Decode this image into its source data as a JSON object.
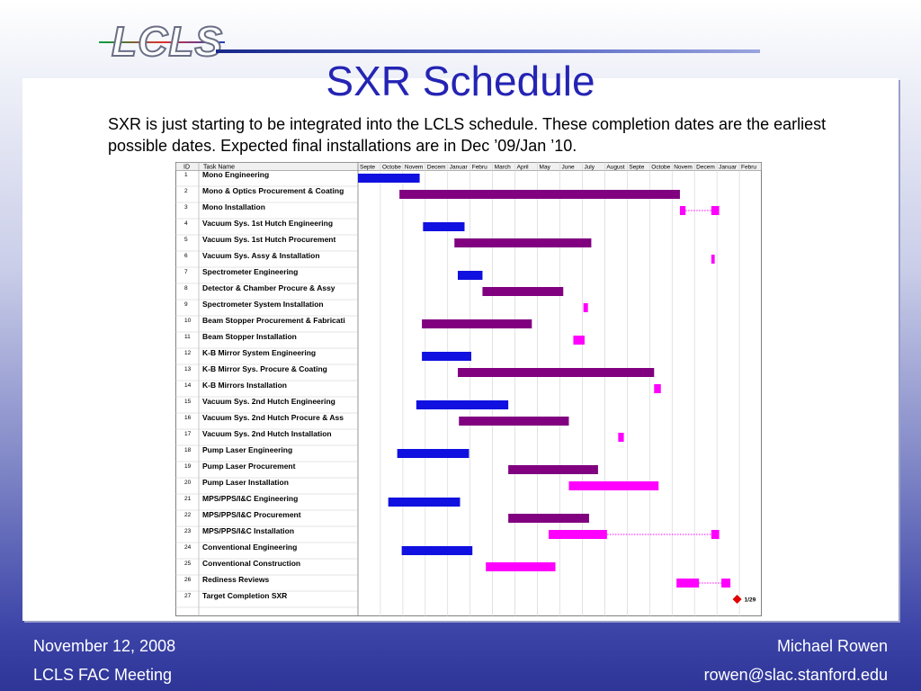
{
  "logo": {
    "text": "LCLS"
  },
  "title": "SXR Schedule",
  "intro": "SXR is just starting to be integrated into the LCLS schedule. These completion dates are the earliest possible dates. Expected final installations are in Dec ’09/Jan ’10.",
  "footer": {
    "date": "November 12, 2008",
    "meeting": "LCLS FAC Meeting",
    "author": "Michael Rowen",
    "email": "rowen@slac.stanford.edu"
  },
  "colors": {
    "engineering": "#1010e0",
    "procurement": "#800080",
    "installation": "#ff00ff",
    "milestone": "#e00000",
    "title": "#2424b4"
  },
  "chart_data": {
    "type": "gantt",
    "headers": {
      "id": "ID",
      "task": "Task Name"
    },
    "months": [
      "Septe",
      "Octobe",
      "Novem",
      "Decem",
      "Januar",
      "Febru",
      "March",
      "April",
      "May",
      "June",
      "July",
      "August",
      "Septe",
      "Octobe",
      "Novem",
      "Decem",
      "Januar",
      "Febru"
    ],
    "x_range_months": [
      0,
      18
    ],
    "tasks": [
      {
        "id": "1",
        "name": "Mono Engineering",
        "segments": [
          {
            "start": 0.0,
            "end": 2.75,
            "kind": "engineering"
          }
        ]
      },
      {
        "id": "2",
        "name": "Mono & Optics Procurement & Coating",
        "segments": [
          {
            "start": 1.85,
            "end": 14.35,
            "kind": "procurement"
          }
        ]
      },
      {
        "id": "3",
        "name": "Mono  Installation",
        "segments": [
          {
            "start": 14.35,
            "end": 14.6,
            "kind": "installation"
          },
          {
            "start": 15.75,
            "end": 16.1,
            "kind": "installation"
          }
        ],
        "split": true
      },
      {
        "id": "4",
        "name": "Vacuum Sys. 1st Hutch Engineering",
        "segments": [
          {
            "start": 2.9,
            "end": 4.75,
            "kind": "engineering"
          }
        ]
      },
      {
        "id": "5",
        "name": "Vacuum Sys. 1st Hutch  Procurement",
        "segments": [
          {
            "start": 4.3,
            "end": 10.4,
            "kind": "procurement"
          }
        ]
      },
      {
        "id": "6",
        "name": "Vacuum Sys. Assy & Installation",
        "segments": [
          {
            "start": 15.75,
            "end": 15.9,
            "kind": "installation"
          }
        ]
      },
      {
        "id": "7",
        "name": "Spectrometer Engineering",
        "segments": [
          {
            "start": 4.45,
            "end": 5.55,
            "kind": "engineering"
          }
        ]
      },
      {
        "id": "8",
        "name": "Detector & Chamber Procure & Assy",
        "segments": [
          {
            "start": 5.55,
            "end": 9.15,
            "kind": "procurement"
          }
        ]
      },
      {
        "id": "9",
        "name": "Spectrometer System Installation",
        "segments": [
          {
            "start": 10.05,
            "end": 10.25,
            "kind": "installation"
          }
        ]
      },
      {
        "id": "10",
        "name": "Beam Stopper Procurement & Fabricati",
        "segments": [
          {
            "start": 2.85,
            "end": 7.75,
            "kind": "procurement"
          }
        ]
      },
      {
        "id": "11",
        "name": "Beam Stopper Installation",
        "segments": [
          {
            "start": 9.6,
            "end": 10.1,
            "kind": "installation"
          }
        ]
      },
      {
        "id": "12",
        "name": "K-B Mirror System Engineering",
        "segments": [
          {
            "start": 2.85,
            "end": 5.05,
            "kind": "engineering"
          }
        ]
      },
      {
        "id": "13",
        "name": "K-B Mirror Sys. Procure & Coating",
        "segments": [
          {
            "start": 4.45,
            "end": 13.2,
            "kind": "procurement"
          }
        ]
      },
      {
        "id": "14",
        "name": "K-B Mirrors Installation",
        "segments": [
          {
            "start": 13.2,
            "end": 13.5,
            "kind": "installation"
          }
        ]
      },
      {
        "id": "15",
        "name": "Vacuum Sys. 2nd Hutch Engineering",
        "segments": [
          {
            "start": 2.6,
            "end": 6.7,
            "kind": "engineering"
          }
        ]
      },
      {
        "id": "16",
        "name": "Vacuum Sys. 2nd Hutch  Procure & Ass",
        "segments": [
          {
            "start": 4.5,
            "end": 9.4,
            "kind": "procurement"
          }
        ]
      },
      {
        "id": "17",
        "name": "Vacuum Sys. 2nd Hutch Installation",
        "segments": [
          {
            "start": 11.6,
            "end": 11.85,
            "kind": "installation"
          }
        ]
      },
      {
        "id": "18",
        "name": "Pump Laser Engineering",
        "segments": [
          {
            "start": 1.75,
            "end": 4.95,
            "kind": "engineering"
          }
        ]
      },
      {
        "id": "19",
        "name": "Pump Laser Procurement",
        "segments": [
          {
            "start": 6.7,
            "end": 10.7,
            "kind": "procurement"
          }
        ]
      },
      {
        "id": "20",
        "name": "Pump Laser Installation",
        "segments": [
          {
            "start": 9.4,
            "end": 13.4,
            "kind": "installation"
          }
        ]
      },
      {
        "id": "21",
        "name": "MPS/PPS/I&C Engineering",
        "segments": [
          {
            "start": 1.35,
            "end": 4.55,
            "kind": "engineering"
          }
        ]
      },
      {
        "id": "22",
        "name": "MPS/PPS/I&C Procurement",
        "segments": [
          {
            "start": 6.7,
            "end": 10.3,
            "kind": "procurement"
          }
        ]
      },
      {
        "id": "23",
        "name": "MPS/PPS/I&C Installation",
        "segments": [
          {
            "start": 8.5,
            "end": 11.1,
            "kind": "installation"
          },
          {
            "start": 15.75,
            "end": 16.1,
            "kind": "installation"
          }
        ],
        "split": true
      },
      {
        "id": "24",
        "name": "Conventional Engineering",
        "segments": [
          {
            "start": 1.95,
            "end": 5.1,
            "kind": "engineering"
          }
        ]
      },
      {
        "id": "25",
        "name": "Conventional Construction",
        "segments": [
          {
            "start": 5.7,
            "end": 8.8,
            "kind": "installation"
          }
        ]
      },
      {
        "id": "26",
        "name": "Rediness Reviews",
        "segments": [
          {
            "start": 14.2,
            "end": 15.2,
            "kind": "installation"
          },
          {
            "start": 16.2,
            "end": 16.6,
            "kind": "installation"
          }
        ],
        "split": true
      },
      {
        "id": "27",
        "name": "Target Completion SXR",
        "milestone": {
          "at": 16.9,
          "label": "1/29"
        }
      }
    ]
  }
}
